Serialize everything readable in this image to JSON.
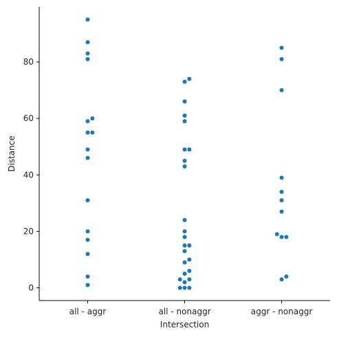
{
  "chart_data": {
    "type": "scatter",
    "subtype": "swarm",
    "xlabel": "Intersection",
    "ylabel": "Distance",
    "categories": [
      "all - aggr",
      "all - nonaggr",
      "aggr - nonaggr"
    ],
    "y_ticks": [
      0,
      20,
      40,
      60,
      80
    ],
    "ylim": [
      -4.5,
      99.5
    ],
    "grid": false,
    "point_color": "#1f77b4",
    "points": [
      [
        95,
        87,
        83,
        81,
        60,
        59,
        55,
        55,
        49,
        46,
        31,
        20,
        17,
        12,
        4,
        1
      ],
      [
        74,
        73,
        66,
        61,
        59,
        49,
        49,
        45,
        43,
        24,
        20,
        18,
        15,
        15,
        13,
        10,
        9,
        6,
        5,
        3,
        3,
        2,
        0,
        0,
        0
      ],
      [
        85,
        81,
        70,
        39,
        34,
        31,
        27,
        19,
        18,
        18,
        4,
        3
      ]
    ]
  }
}
